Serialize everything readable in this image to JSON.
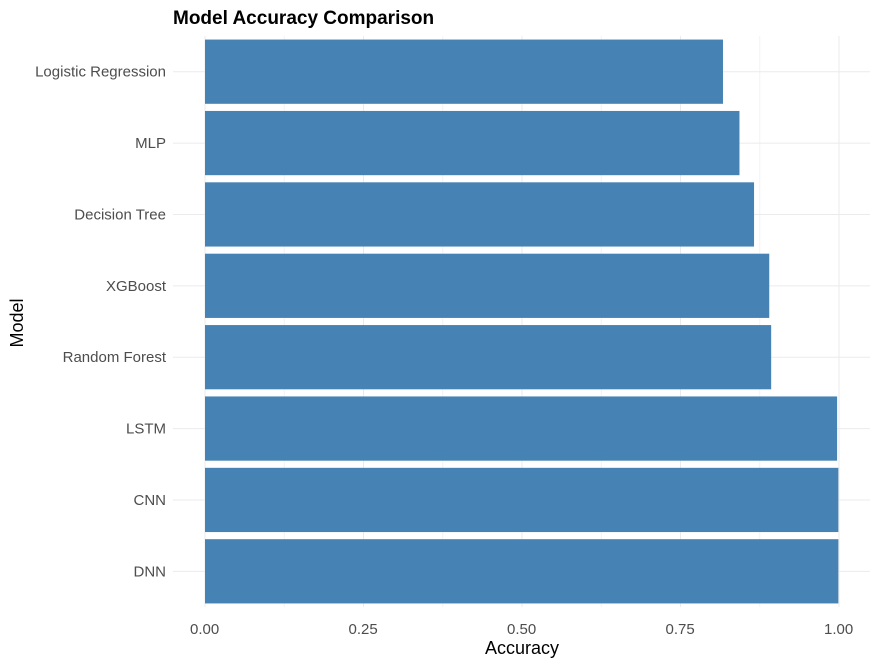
{
  "chart_data": {
    "type": "bar",
    "orientation": "horizontal",
    "title": "Model Accuracy Comparison",
    "xlabel": "Accuracy",
    "ylabel": "Model",
    "categories": [
      "Logistic Regression",
      "MLP",
      "Decision Tree",
      "XGBoost",
      "Random Forest",
      "LSTM",
      "CNN",
      "DNN"
    ],
    "values": [
      0.817,
      0.843,
      0.866,
      0.89,
      0.893,
      0.997,
      0.999,
      0.999
    ],
    "xlim": [
      0,
      1.05
    ],
    "xticks": [
      0,
      0.25,
      0.5,
      0.75,
      1.0
    ],
    "xtick_labels": [
      "0.00",
      "0.25",
      "0.50",
      "0.75",
      "1.00"
    ],
    "bar_color": "#4682b4",
    "grid": true,
    "legend": "none"
  }
}
